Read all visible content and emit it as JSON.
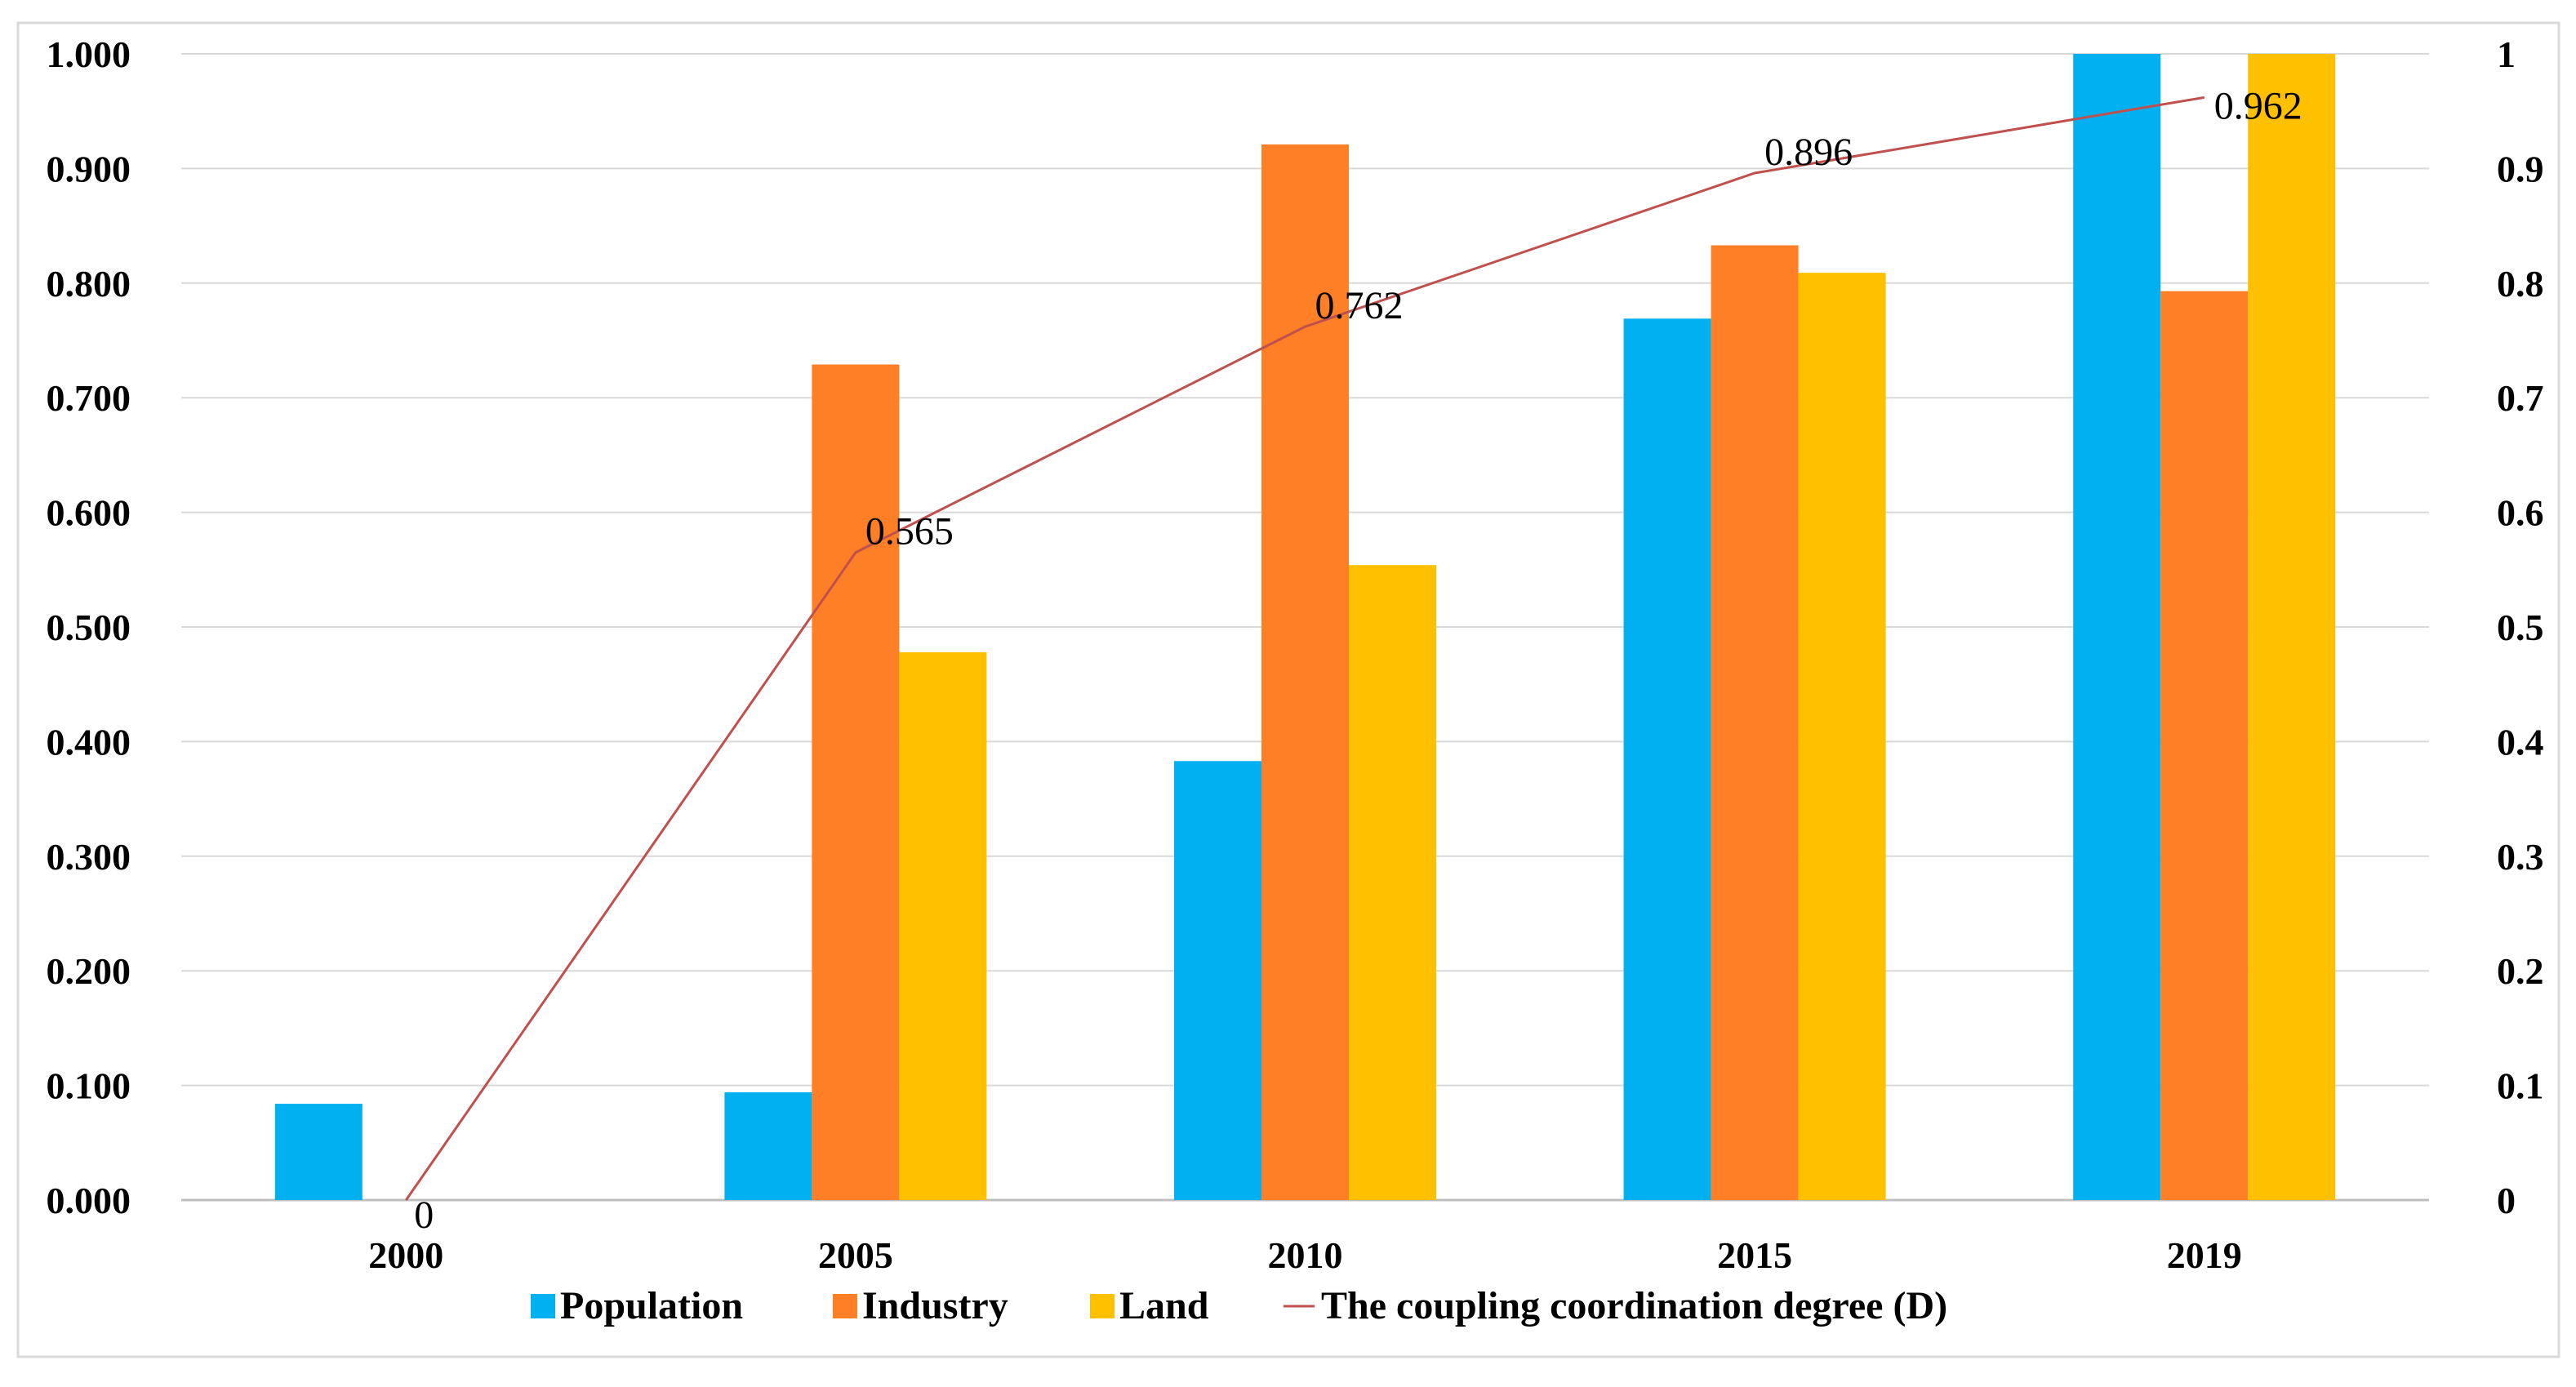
{
  "chart_data": {
    "type": "bar",
    "categories": [
      "2000",
      "2005",
      "2010",
      "2015",
      "2019"
    ],
    "series": [
      {
        "name": "Population",
        "kind": "bar",
        "color": "#00B0F0",
        "values": [
          0.084,
          0.094,
          0.383,
          0.769,
          1.0
        ]
      },
      {
        "name": "Industry",
        "kind": "bar",
        "color": "#FF7F27",
        "values": [
          0.0,
          0.729,
          0.921,
          0.833,
          0.793
        ]
      },
      {
        "name": "Land",
        "kind": "bar",
        "color": "#FFC000",
        "values": [
          0.0,
          0.478,
          0.554,
          0.809,
          1.0
        ]
      },
      {
        "name": "The coupling coordination degree (D)",
        "kind": "line",
        "axis": "secondary",
        "color": "#C0504D",
        "values": [
          0,
          0.565,
          0.762,
          0.896,
          0.962
        ]
      }
    ],
    "data_labels": [
      "0",
      "0.565",
      "0.762",
      "0.896",
      "0.962"
    ],
    "y_left": {
      "ylim": [
        0,
        1
      ],
      "ticks": [
        0,
        0.1,
        0.2,
        0.3,
        0.4,
        0.5,
        0.6,
        0.7,
        0.8,
        0.9,
        1.0
      ],
      "tick_labels": [
        "0.000",
        "0.100",
        "0.200",
        "0.300",
        "0.400",
        "0.500",
        "0.600",
        "0.700",
        "0.800",
        "0.900",
        "1.000"
      ]
    },
    "y_right": {
      "ylim": [
        0,
        1
      ],
      "ticks": [
        0,
        0.1,
        0.2,
        0.3,
        0.4,
        0.5,
        0.6,
        0.7,
        0.8,
        0.9,
        1.0
      ],
      "tick_labels": [
        "0",
        "0.1",
        "0.2",
        "0.3",
        "0.4",
        "0.5",
        "0.6",
        "0.7",
        "0.8",
        "0.9",
        "1"
      ]
    },
    "title": "",
    "xlabel": "",
    "ylabel": "",
    "grid": true,
    "legend_position": "bottom"
  }
}
